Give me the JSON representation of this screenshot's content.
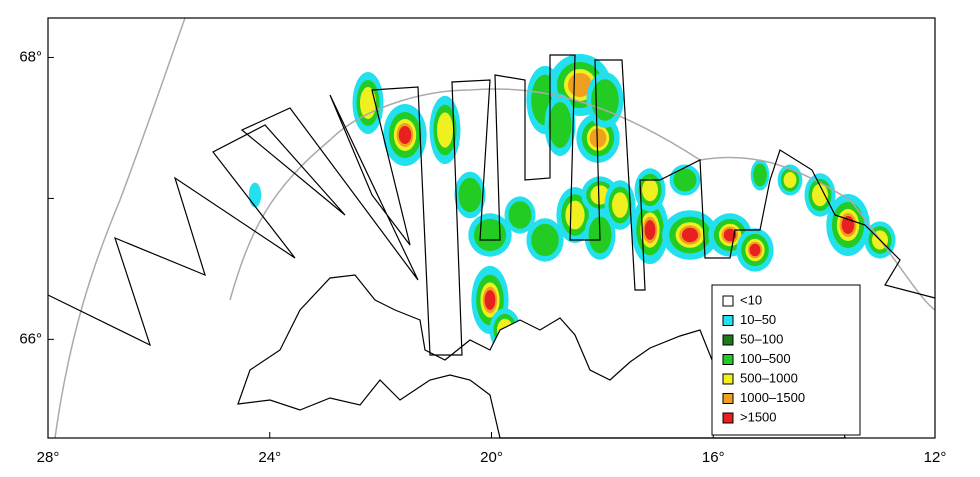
{
  "map": {
    "xlim": [
      28,
      12
    ],
    "ylim": [
      65.3,
      68.28
    ],
    "xticks": [
      {
        "value": 28,
        "label": "28°"
      },
      {
        "value": 24,
        "label": "24°"
      },
      {
        "value": 20,
        "label": "20°"
      },
      {
        "value": 16,
        "label": "16°"
      },
      {
        "value": 12,
        "label": "12°"
      }
    ],
    "yticks": [
      {
        "value": 68,
        "label": "68°"
      },
      {
        "value": 67,
        "label": ""
      },
      {
        "value": 66,
        "label": "66°"
      }
    ],
    "legend": [
      {
        "label": "<10",
        "color": "#ffffff"
      },
      {
        "label": "10–50",
        "color": "#22e0ee"
      },
      {
        "label": "50–100",
        "color": "#1c7a1c"
      },
      {
        "label": "100–500",
        "color": "#22cc22"
      },
      {
        "label": "500–1000",
        "color": "#f0f020"
      },
      {
        "label": "1000–1500",
        "color": "#f0a020"
      },
      {
        "label": ">1500",
        "color": "#e82020"
      }
    ]
  }
}
